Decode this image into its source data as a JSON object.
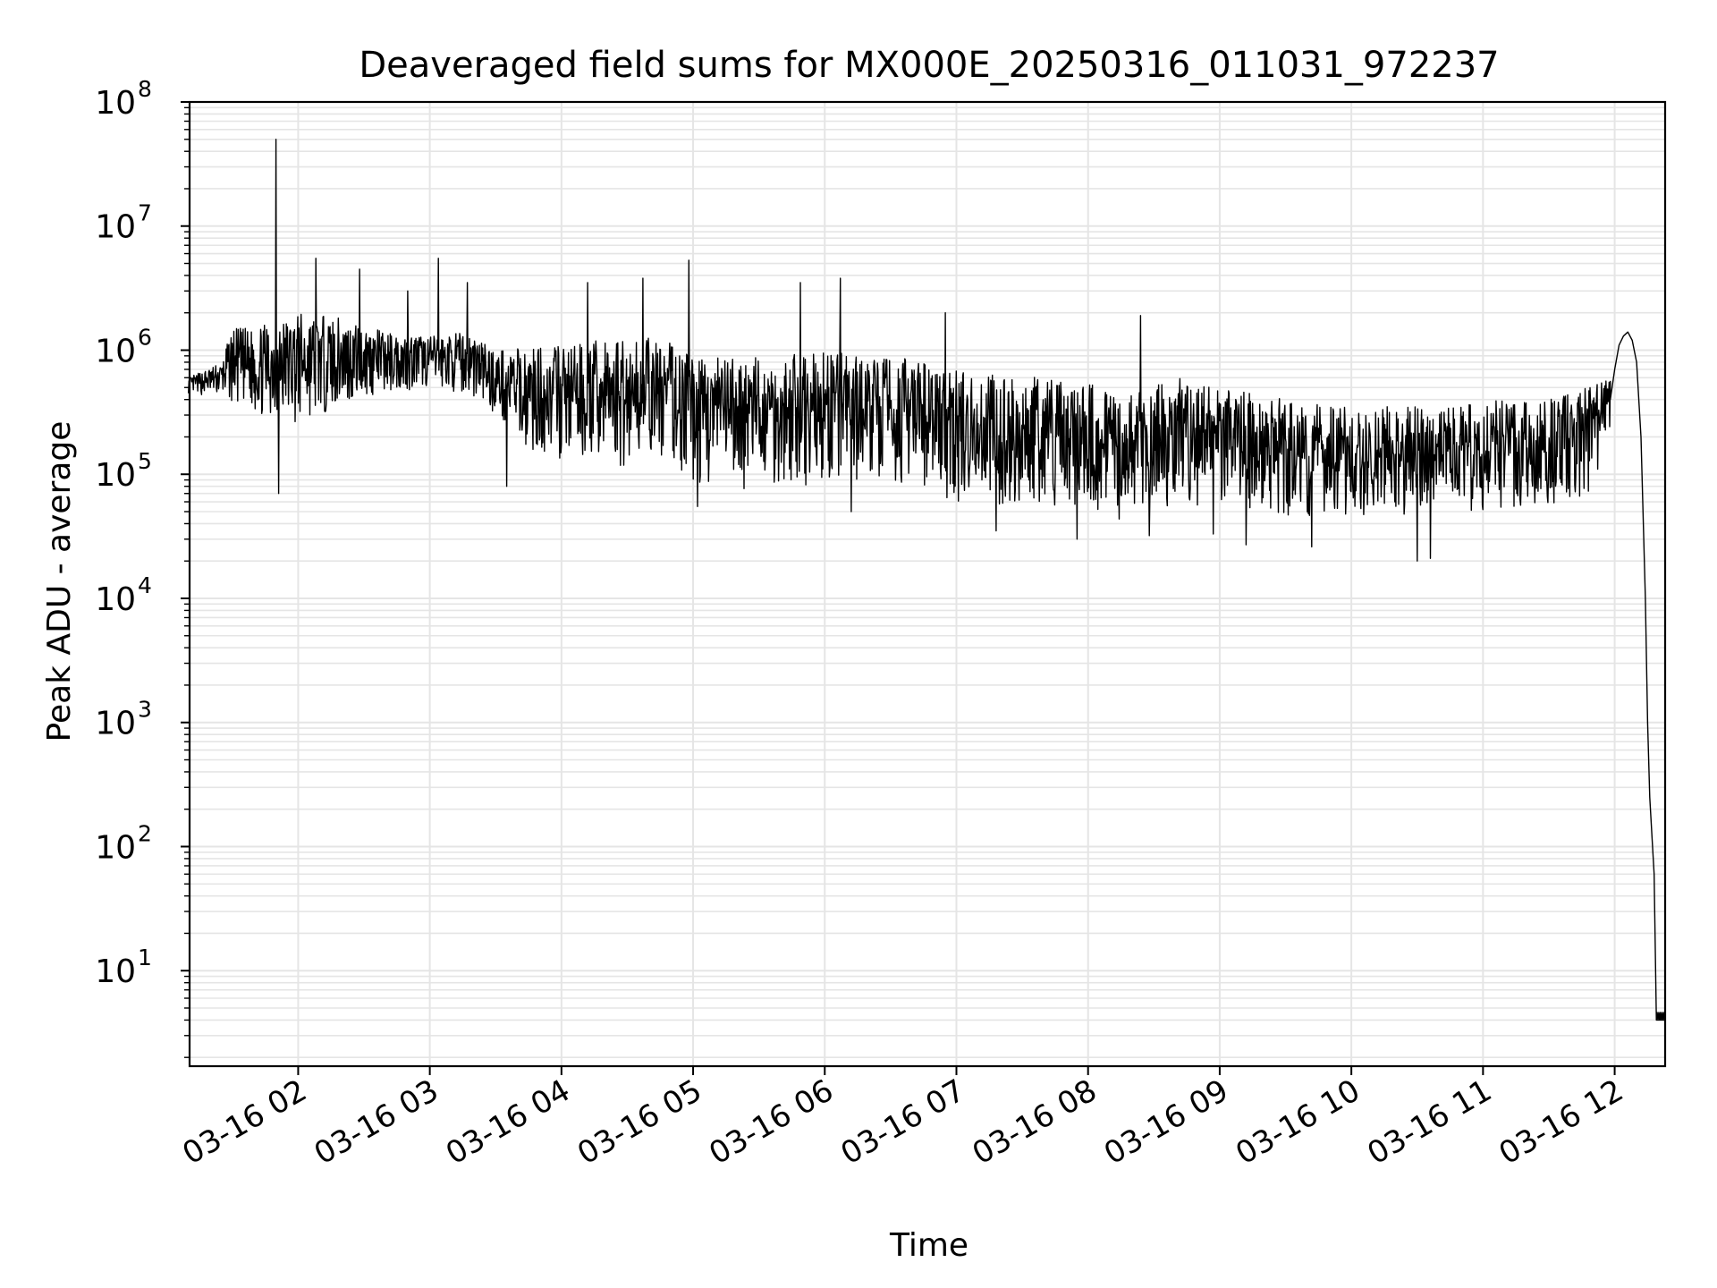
{
  "chart_data": {
    "type": "line",
    "title": "Deaveraged field sums for MX000E_20250316_011031_972237",
    "xlabel": "Time",
    "ylabel": "Peak ADU - average",
    "yscale": "log",
    "ylim": [
      1.7,
      100000000
    ],
    "xlim": [
      "2025-03-16 01:10:31",
      "2025-03-16 12:23:00"
    ],
    "grid": true,
    "line_color": "#000000",
    "grid_color": "#e5e5e5",
    "x_ticks": [
      {
        "label": "03-16 02",
        "time": "2025-03-16 02:00"
      },
      {
        "label": "03-16 03",
        "time": "2025-03-16 03:00"
      },
      {
        "label": "03-16 04",
        "time": "2025-03-16 04:00"
      },
      {
        "label": "03-16 05",
        "time": "2025-03-16 05:00"
      },
      {
        "label": "03-16 06",
        "time": "2025-03-16 06:00"
      },
      {
        "label": "03-16 07",
        "time": "2025-03-16 07:00"
      },
      {
        "label": "03-16 08",
        "time": "2025-03-16 08:00"
      },
      {
        "label": "03-16 09",
        "time": "2025-03-16 09:00"
      },
      {
        "label": "03-16 10",
        "time": "2025-03-16 10:00"
      },
      {
        "label": "03-16 11",
        "time": "2025-03-16 11:00"
      },
      {
        "label": "03-16 12",
        "time": "2025-03-16 12:00"
      }
    ],
    "y_ticks": [
      {
        "base": "10",
        "exp": "1",
        "value": 10
      },
      {
        "base": "10",
        "exp": "2",
        "value": 100
      },
      {
        "base": "10",
        "exp": "3",
        "value": 1000
      },
      {
        "base": "10",
        "exp": "4",
        "value": 10000
      },
      {
        "base": "10",
        "exp": "5",
        "value": 100000
      },
      {
        "base": "10",
        "exp": "6",
        "value": 1000000
      },
      {
        "base": "10",
        "exp": "7",
        "value": 10000000
      },
      {
        "base": "10",
        "exp": "8",
        "value": 100000000
      }
    ],
    "series": [
      {
        "band_low": [
          [
            "2025-03-16 01:10",
            450000
          ],
          [
            "2025-03-16 01:25",
            420000
          ],
          [
            "2025-03-16 01:40",
            300000
          ],
          [
            "2025-03-16 02:00",
            250000
          ],
          [
            "2025-03-16 02:20",
            350000
          ],
          [
            "2025-03-16 02:40",
            450000
          ],
          [
            "2025-03-16 03:00",
            500000
          ],
          [
            "2025-03-16 03:15",
            450000
          ],
          [
            "2025-03-16 03:30",
            300000
          ],
          [
            "2025-03-16 03:45",
            150000
          ],
          [
            "2025-03-16 04:00",
            130000
          ],
          [
            "2025-03-16 04:30",
            110000
          ],
          [
            "2025-03-16 04:50",
            120000
          ],
          [
            "2025-03-16 05:00",
            80000
          ],
          [
            "2025-03-16 05:30",
            75000
          ],
          [
            "2025-03-16 06:00",
            75000
          ],
          [
            "2025-03-16 06:30",
            90000
          ],
          [
            "2025-03-16 07:00",
            60000
          ],
          [
            "2025-03-16 07:30",
            55000
          ],
          [
            "2025-03-16 08:00",
            45000
          ],
          [
            "2025-03-16 08:20",
            40000
          ],
          [
            "2025-03-16 08:40",
            60000
          ],
          [
            "2025-03-16 09:00",
            50000
          ],
          [
            "2025-03-16 09:30",
            45000
          ],
          [
            "2025-03-16 10:00",
            45000
          ],
          [
            "2025-03-16 10:30",
            45000
          ],
          [
            "2025-03-16 11:00",
            50000
          ],
          [
            "2025-03-16 11:30",
            55000
          ],
          [
            "2025-03-16 11:48",
            70000
          ],
          [
            "2025-03-16 11:58",
            200000
          ]
        ],
        "band_high": [
          [
            "2025-03-16 01:10",
            600000
          ],
          [
            "2025-03-16 01:25",
            800000
          ],
          [
            "2025-03-16 01:30",
            1500000
          ],
          [
            "2025-03-16 01:40",
            1500000
          ],
          [
            "2025-03-16 02:00",
            2000000
          ],
          [
            "2025-03-16 02:20",
            1800000
          ],
          [
            "2025-03-16 02:40",
            1400000
          ],
          [
            "2025-03-16 03:00",
            1300000
          ],
          [
            "2025-03-16 03:20",
            1400000
          ],
          [
            "2025-03-16 03:30",
            1000000
          ],
          [
            "2025-03-16 04:00",
            1100000
          ],
          [
            "2025-03-16 04:30",
            1300000
          ],
          [
            "2025-03-16 04:50",
            1200000
          ],
          [
            "2025-03-16 05:00",
            900000
          ],
          [
            "2025-03-16 05:30",
            900000
          ],
          [
            "2025-03-16 06:00",
            1000000
          ],
          [
            "2025-03-16 06:30",
            900000
          ],
          [
            "2025-03-16 07:00",
            700000
          ],
          [
            "2025-03-16 07:30",
            650000
          ],
          [
            "2025-03-16 08:00",
            550000
          ],
          [
            "2025-03-16 08:20",
            450000
          ],
          [
            "2025-03-16 08:40",
            600000
          ],
          [
            "2025-03-16 09:00",
            500000
          ],
          [
            "2025-03-16 09:30",
            400000
          ],
          [
            "2025-03-16 10:00",
            350000
          ],
          [
            "2025-03-16 10:30",
            350000
          ],
          [
            "2025-03-16 11:00",
            400000
          ],
          [
            "2025-03-16 11:30",
            400000
          ],
          [
            "2025-03-16 11:48",
            500000
          ],
          [
            "2025-03-16 11:58",
            700000
          ]
        ],
        "spikes": [
          [
            "2025-03-16 01:50",
            50000000
          ],
          [
            "2025-03-16 01:51",
            70000
          ],
          [
            "2025-03-16 02:08",
            5500000
          ],
          [
            "2025-03-16 02:28",
            4500000
          ],
          [
            "2025-03-16 02:50",
            3000000
          ],
          [
            "2025-03-16 03:04",
            5500000
          ],
          [
            "2025-03-16 03:17",
            3500000
          ],
          [
            "2025-03-16 03:35",
            80000
          ],
          [
            "2025-03-16 04:12",
            3500000
          ],
          [
            "2025-03-16 04:37",
            3800000
          ],
          [
            "2025-03-16 04:58",
            5300000
          ],
          [
            "2025-03-16 05:02",
            55000
          ],
          [
            "2025-03-16 05:49",
            3500000
          ],
          [
            "2025-03-16 06:07",
            3800000
          ],
          [
            "2025-03-16 06:12",
            50000
          ],
          [
            "2025-03-16 06:55",
            2000000
          ],
          [
            "2025-03-16 07:18",
            35000
          ],
          [
            "2025-03-16 07:55",
            30000
          ],
          [
            "2025-03-16 08:24",
            1900000
          ],
          [
            "2025-03-16 08:28",
            32000
          ],
          [
            "2025-03-16 08:57",
            33000
          ],
          [
            "2025-03-16 09:12",
            27000
          ],
          [
            "2025-03-16 09:42",
            26000
          ],
          [
            "2025-03-16 10:30",
            20000
          ],
          [
            "2025-03-16 10:36",
            21000
          ]
        ],
        "ending": [
          [
            "2025-03-16 11:58",
            400000
          ],
          [
            "2025-03-16 12:00",
            700000
          ],
          [
            "2025-03-16 12:02",
            1100000
          ],
          [
            "2025-03-16 12:04",
            1300000
          ],
          [
            "2025-03-16 12:06",
            1400000
          ],
          [
            "2025-03-16 12:08",
            1200000
          ],
          [
            "2025-03-16 12:10",
            800000
          ],
          [
            "2025-03-16 12:12",
            200000
          ],
          [
            "2025-03-16 12:14",
            10000
          ],
          [
            "2025-03-16 12:15",
            1000
          ],
          [
            "2025-03-16 12:16",
            250
          ],
          [
            "2025-03-16 12:17",
            120
          ],
          [
            "2025-03-16 12:18",
            60
          ],
          [
            "2025-03-16 12:19",
            4
          ],
          [
            "2025-03-16 12:23",
            4
          ]
        ]
      }
    ]
  }
}
